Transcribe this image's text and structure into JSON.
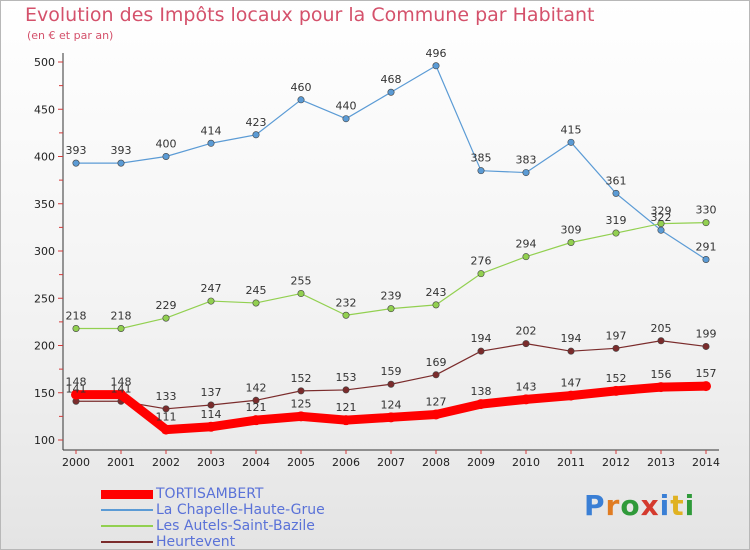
{
  "header": {
    "title": "Evolution des Impôts locaux pour la Commune par Habitant",
    "subtitle": "(en € et par an)"
  },
  "logo": {
    "text": "Proxiti",
    "letters": [
      {
        "ch": "P",
        "color": "#3a7fd5"
      },
      {
        "ch": "r",
        "color": "#e07c22"
      },
      {
        "ch": "o",
        "color": "#2f9a3a"
      },
      {
        "ch": "x",
        "color": "#d43a2e"
      },
      {
        "ch": "i",
        "color": "#3a7fd5"
      },
      {
        "ch": "t",
        "color": "#e0b222"
      },
      {
        "ch": "i",
        "color": "#2f9a3a"
      }
    ]
  },
  "chart_data": {
    "type": "line",
    "x": [
      "2000",
      "2001",
      "2002",
      "2003",
      "2004",
      "2005",
      "2006",
      "2007",
      "2008",
      "2009",
      "2010",
      "2011",
      "2012",
      "2013",
      "2014"
    ],
    "ylim": [
      100,
      500
    ],
    "yticks": [
      100,
      150,
      200,
      250,
      300,
      350,
      400,
      450,
      500
    ],
    "grid": false,
    "legend_position": "bottom-left",
    "series": [
      {
        "name": "TORTISAMBERT",
        "color": "#ff0000",
        "values": [
          148,
          148,
          111,
          114,
          121,
          125,
          121,
          124,
          127,
          138,
          143,
          147,
          152,
          156,
          157
        ]
      },
      {
        "name": "La Chapelle-Haute-Grue",
        "color": "#5b9bd5",
        "values": [
          393,
          393,
          400,
          414,
          423,
          460,
          440,
          468,
          496,
          385,
          383,
          415,
          361,
          322,
          291
        ]
      },
      {
        "name": "Les Autels-Saint-Bazile",
        "color": "#92d050",
        "values": [
          218,
          218,
          229,
          247,
          245,
          255,
          232,
          239,
          243,
          276,
          294,
          309,
          319,
          329,
          330
        ]
      },
      {
        "name": "Heurtevent",
        "color": "#7b2c2c",
        "values": [
          141,
          141,
          133,
          137,
          142,
          152,
          153,
          159,
          169,
          194,
          202,
          194,
          197,
          205,
          199
        ]
      }
    ]
  }
}
